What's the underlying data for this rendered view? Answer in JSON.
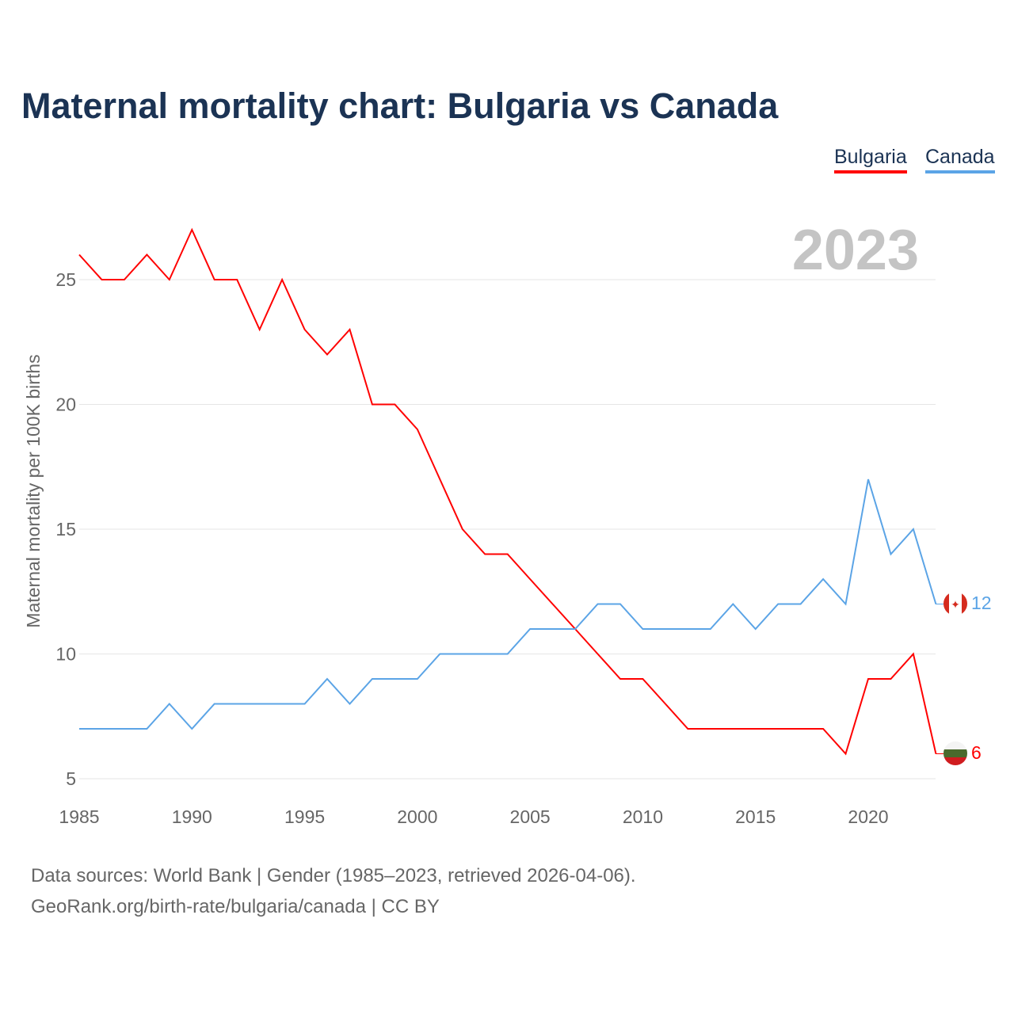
{
  "chart_data": {
    "type": "line",
    "title": "Maternal mortality chart: Bulgaria vs Canada",
    "ylabel": "Maternal mortality per 100K births",
    "xlabel": "",
    "year_label": "2023",
    "xlim": [
      1985,
      2023
    ],
    "ylim": [
      5,
      27
    ],
    "xticks": [
      "1985",
      "1990",
      "1995",
      "2000",
      "2005",
      "2010",
      "2015",
      "2020"
    ],
    "yticks": [
      "5",
      "10",
      "15",
      "20",
      "25"
    ],
    "grid": true,
    "legend_placement": "top-right",
    "x": [
      1985,
      1986,
      1987,
      1988,
      1989,
      1990,
      1991,
      1992,
      1993,
      1994,
      1995,
      1996,
      1997,
      1998,
      1999,
      2000,
      2001,
      2002,
      2003,
      2004,
      2005,
      2006,
      2007,
      2008,
      2009,
      2010,
      2011,
      2012,
      2013,
      2014,
      2015,
      2016,
      2017,
      2018,
      2019,
      2020,
      2021,
      2022,
      2023
    ],
    "series": [
      {
        "name": "Bulgaria",
        "color": "#ff0000",
        "end_label": "6",
        "values": [
          26,
          25,
          25,
          26,
          25,
          27,
          25,
          25,
          23,
          25,
          23,
          22,
          23,
          20,
          20,
          19,
          17,
          15,
          14,
          14,
          13,
          12,
          11,
          10,
          9,
          9,
          8,
          7,
          7,
          7,
          7,
          7,
          7,
          7,
          6,
          9,
          9,
          10,
          6
        ]
      },
      {
        "name": "Canada",
        "color": "#5ba4e6",
        "end_label": "12",
        "values": [
          7,
          7,
          7,
          7,
          8,
          7,
          8,
          8,
          8,
          8,
          8,
          9,
          8,
          9,
          9,
          9,
          10,
          10,
          10,
          10,
          11,
          11,
          11,
          12,
          12,
          11,
          11,
          11,
          11,
          12,
          11,
          12,
          12,
          13,
          12,
          17,
          14,
          15,
          12
        ]
      }
    ]
  },
  "footer": {
    "line1": "Data sources: World Bank | Gender (1985–2023, retrieved 2026-04-06).",
    "line2": "GeoRank.org/birth-rate/bulgaria/canada | CC BY"
  }
}
